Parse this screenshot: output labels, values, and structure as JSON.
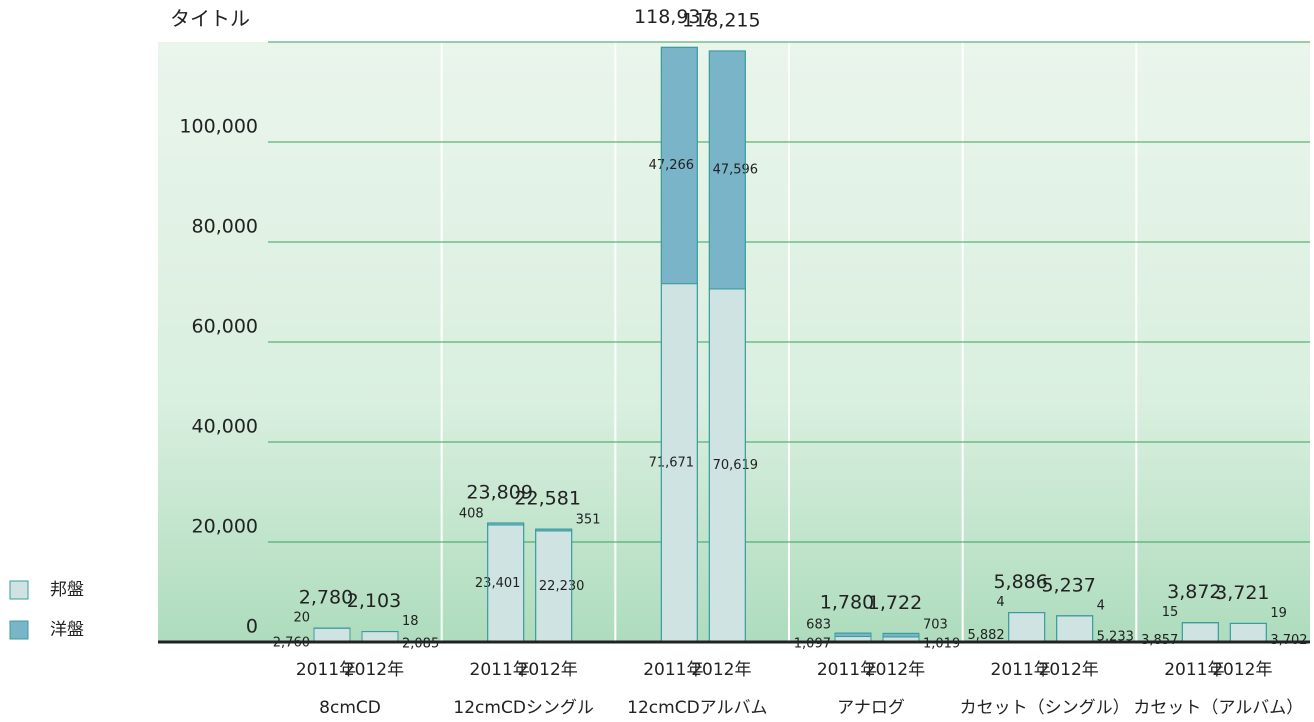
{
  "chart_data": {
    "type": "stacked_bar",
    "ylabel": "タイトル",
    "categories": [
      "2011年",
      "2012年",
      "2011年",
      "2012年",
      "2011年",
      "2012年",
      "2011年",
      "2012年",
      "2011年",
      "2012年",
      "2011年",
      "2012年"
    ],
    "groups": [
      "8cmCD",
      "12cmCDシングル",
      "12cmCDアルバム",
      "アナログ",
      "カセット（シングル）",
      "カセット（アルバム）"
    ],
    "series": [
      {
        "name": "邦盤",
        "color": "#cfe3e3",
        "values": [
          2760,
          2085,
          23401,
          22230,
          71671,
          70619,
          1097,
          1019,
          5882,
          5233,
          3857,
          3702
        ],
        "value_labels": [
          "2,760",
          "2,085",
          "23,401",
          "22,230",
          "71,671",
          "70,619",
          "1,097",
          "1,019",
          "5,882",
          "5,233",
          "3,857",
          "3,702"
        ]
      },
      {
        "name": "洋盤",
        "color": "#7ab4c8",
        "values": [
          20,
          18,
          408,
          351,
          47266,
          47596,
          683,
          703,
          4,
          4,
          15,
          19
        ],
        "value_labels": [
          "20",
          "18",
          "408",
          "351",
          "47,266",
          "47,596",
          "683",
          "703",
          "4",
          "4",
          "15",
          "19"
        ]
      }
    ],
    "totals": {
      "values": [
        2780,
        2103,
        23809,
        22581,
        118937,
        118215,
        1780,
        1722,
        5886,
        5237,
        3872,
        3721
      ],
      "value_labels": [
        "2,780",
        "2,103",
        "23,809",
        "22,581",
        "118,937",
        "118,215",
        "1,780",
        "1,722",
        "5,886",
        "5,237",
        "3,872",
        "3,721"
      ]
    },
    "ylim": [
      0,
      120000
    ],
    "yticks": [
      0,
      {
        "value": 20000,
        "label": "20,000"
      },
      {
        "value": 40000,
        "label": "40,000"
      },
      {
        "value": 60000,
        "label": "60,000"
      },
      {
        "value": 80000,
        "label": "80,000"
      },
      {
        "value": 100000,
        "label": "100,000"
      }
    ],
    "grid": true
  }
}
